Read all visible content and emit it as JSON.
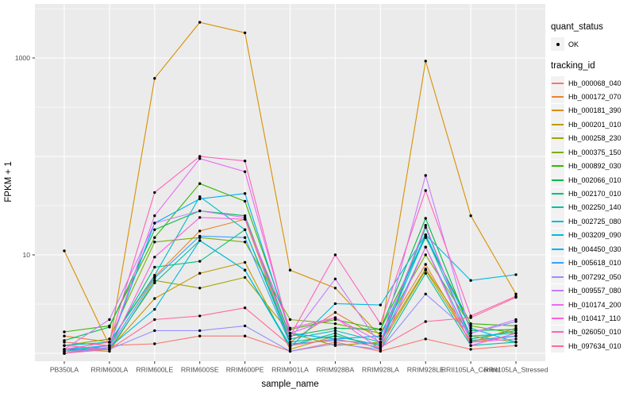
{
  "colors": {
    "panel_background": "#EBEBEB",
    "gridline": "#FFFFFF",
    "axis_text": "#4D4D4D",
    "tick_mark": "#333333",
    "point": "#000000",
    "legend_key_background": "#F2F2F2"
  },
  "axes": {
    "x_title": "sample_name",
    "y_title": "FPKM + 1"
  },
  "legend": {
    "quant_status_title": "quant_status",
    "quant_status_items": [
      {
        "label": "OK",
        "symbol": "point"
      }
    ],
    "tracking_id_title": "tracking_id"
  },
  "chart_data": {
    "type": "line",
    "xlabel": "sample_name",
    "ylabel": "FPKM + 1",
    "y_scale": "log10",
    "ylim": [
      0.8,
      3600
    ],
    "grid": true,
    "legend_position": "right",
    "y_ticks": [
      {
        "label": "1000",
        "value": 1000
      },
      {
        "label": "10",
        "value": 10
      }
    ],
    "grid_major_values": [
      1000,
      100,
      10,
      1
    ],
    "grid_minor_values": [
      3162,
      316,
      31.6,
      3.16
    ],
    "categories": [
      "PB350LA",
      "RRIM600LA",
      "RRIM600LE",
      "RRIM600SE",
      "RRIM600PE",
      "RRIM901LA",
      "RRIM928BA",
      "RRIM928LA",
      "RRIM928LE",
      "RRII105LA_Control",
      "RRII105LA_Stressed"
    ],
    "series": [
      {
        "name": "Hb_000068_040",
        "color": "#F8766D",
        "values": [
          1.3,
          1.2,
          1.25,
          1.5,
          1.5,
          1.05,
          1.3,
          1.05,
          1.4,
          1.1,
          1.2
        ]
      },
      {
        "name": "Hb_000172_070",
        "color": "#EA8331",
        "values": [
          1.5,
          1.3,
          6,
          17.5,
          23,
          1.3,
          2.6,
          1.4,
          8,
          1.3,
          1.5
        ]
      },
      {
        "name": "Hb_000181_390",
        "color": "#D89000",
        "values": [
          11,
          1.2,
          620,
          2300,
          1800,
          7,
          4.6,
          1.5,
          930,
          25,
          4
        ]
      },
      {
        "name": "Hb_000201_010",
        "color": "#C09B00",
        "values": [
          1.05,
          1.1,
          3.6,
          6.5,
          8.4,
          1.1,
          1.5,
          1.2,
          7,
          1.3,
          1.8
        ]
      },
      {
        "name": "Hb_000258_230",
        "color": "#A3A500",
        "values": [
          1.1,
          1.05,
          5.5,
          4.6,
          5.9,
          1.6,
          1.2,
          1.3,
          7.2,
          1.5,
          1.3
        ]
      },
      {
        "name": "Hb_000375_150",
        "color": "#7CAE00",
        "values": [
          1.2,
          1.4,
          13.5,
          15,
          13.5,
          2.2,
          2.0,
          1.6,
          10,
          1.9,
          1.6
        ]
      },
      {
        "name": "Hb_000892_030",
        "color": "#39B600",
        "values": [
          1.65,
          1.9,
          15,
          53,
          35,
          1.75,
          2.2,
          1.75,
          15,
          2.0,
          1.9
        ]
      },
      {
        "name": "Hb_002066_010",
        "color": "#00BB4E",
        "values": [
          1.35,
          1.85,
          18,
          28,
          25,
          1.5,
          1.8,
          1.75,
          23.5,
          1.7,
          1.75
        ]
      },
      {
        "name": "Hb_002170_010",
        "color": "#00BF7D",
        "values": [
          1.05,
          1.2,
          7.5,
          8.6,
          18,
          1.3,
          1.5,
          1.2,
          19,
          1.4,
          1.7
        ]
      },
      {
        "name": "Hb_002250_140",
        "color": "#00C1A3",
        "values": [
          1.1,
          1.1,
          5.2,
          14,
          7,
          1.2,
          1.6,
          1.1,
          6.5,
          1.2,
          1.3
        ]
      },
      {
        "name": "Hb_002725_080",
        "color": "#00BFC4",
        "values": [
          1.2,
          1.3,
          6.2,
          39,
          18,
          1.4,
          1.7,
          1.3,
          15.5,
          1.5,
          1.6
        ]
      },
      {
        "name": "Hb_003209_090",
        "color": "#00BAE0",
        "values": [
          1.0,
          1.15,
          2.8,
          14,
          7,
          1.15,
          3.2,
          3.1,
          16,
          5.5,
          6.3
        ]
      },
      {
        "name": "Hb_004450_030",
        "color": "#00B0F6",
        "values": [
          1.1,
          1.2,
          21,
          37,
          42,
          1.6,
          1.4,
          1.5,
          16,
          1.8,
          1.3
        ]
      },
      {
        "name": "Hb_005618_010",
        "color": "#35A2FF",
        "values": [
          1.0,
          1.15,
          5.8,
          15.5,
          15,
          1.25,
          1.35,
          1.25,
          12,
          1.35,
          1.5
        ]
      },
      {
        "name": "Hb_007292_050",
        "color": "#9590FF",
        "values": [
          1.05,
          1.1,
          1.7,
          1.7,
          1.9,
          1.05,
          1.25,
          1.1,
          4.0,
          1.6,
          2.1
        ]
      },
      {
        "name": "Hb_009557_080",
        "color": "#C77CFF",
        "values": [
          1.1,
          2.2,
          21,
          28,
          24,
          1.4,
          5.7,
          1.2,
          64,
          1.6,
          2.2
        ]
      },
      {
        "name": "Hb_010174_200",
        "color": "#E76BF3",
        "values": [
          1.0,
          1.2,
          25,
          95,
          70,
          1.6,
          2.3,
          1.3,
          20,
          1.3,
          1.4
        ]
      },
      {
        "name": "Hb_010417_110",
        "color": "#FA62DB",
        "values": [
          1.2,
          1.1,
          9.5,
          24,
          23,
          1.8,
          2.3,
          1.1,
          12,
          1.2,
          1.6
        ]
      },
      {
        "name": "Hb_026050_010",
        "color": "#FF62BC",
        "values": [
          1.1,
          1.3,
          43,
          100,
          90,
          1.5,
          10,
          2.0,
          45,
          2.4,
          3.8
        ]
      },
      {
        "name": "Hb_097634_010",
        "color": "#FF6A98",
        "values": [
          1.0,
          1.1,
          2.2,
          2.4,
          2.9,
          1.2,
          1.4,
          1.15,
          2.1,
          2.3,
          3.7
        ]
      }
    ]
  }
}
